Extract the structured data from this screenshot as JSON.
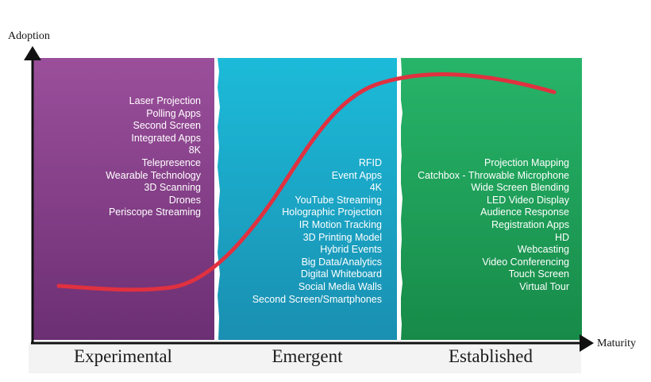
{
  "axes": {
    "y_label": "Adoption",
    "x_label": "Maturity"
  },
  "colors": {
    "experimental": "#8e3f8c",
    "emergent": "#1ba9c9",
    "established": "#22a65a",
    "curve": "#e03140",
    "axis": "#111111"
  },
  "phases": [
    {
      "name": "Experimental",
      "items": [
        "Laser Projection",
        "Polling Apps",
        "Second Screen",
        "Integrated Apps",
        "8K",
        "Telepresence",
        "Wearable Technology",
        "3D Scanning",
        "Drones",
        "Periscope Streaming"
      ]
    },
    {
      "name": "Emergent",
      "items": [
        "RFID",
        "Event Apps",
        "4K",
        "YouTube Streaming",
        "Holographic Projection",
        "IR Motion Tracking",
        "3D Printing Model",
        "Hybrid Events",
        "Big Data/Analytics",
        "Digital Whiteboard",
        "Social Media Walls",
        "Second Screen/Smartphones"
      ]
    },
    {
      "name": "Established",
      "items": [
        "Projection Mapping",
        "Catchbox - Throwable Microphone",
        "Wide Screen Blending",
        "LED Video Display",
        "Audience Response",
        "Registration Apps",
        "HD",
        "Webcasting",
        "Video Conferencing",
        "Touch Screen",
        "Virtual Tour"
      ]
    }
  ]
}
